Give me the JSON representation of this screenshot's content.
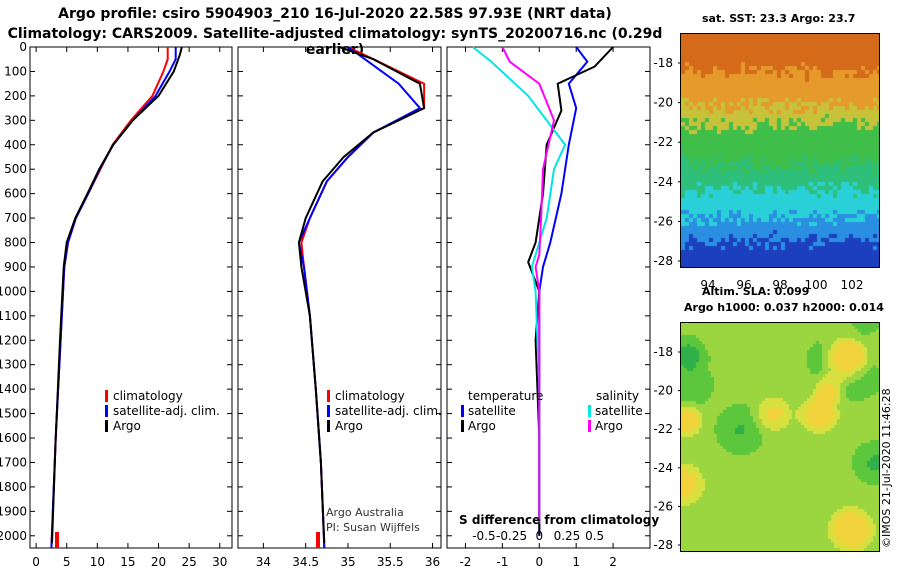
{
  "header": {
    "line1": "Argo profile: csiro 5904903_210 16-Jul-2020 22.58S 97.93E (NRT data)",
    "line2": "Climatology: CARS2009. Satellite-adjusted climatology: synTS_20200716.nc (0.29d earlier)"
  },
  "colors": {
    "climatology": "#ff0000",
    "satellite": "#0000ff",
    "argo": "#000000",
    "sat_salinity": "#00e5e5",
    "argo_salinity": "#ff00ff"
  },
  "chart_data": [
    {
      "type": "line",
      "panel": "temperature",
      "ylim": [
        2050,
        0
      ],
      "yticks": [
        0,
        100,
        200,
        300,
        400,
        500,
        600,
        700,
        800,
        900,
        1000,
        1100,
        1200,
        1300,
        1400,
        1500,
        1600,
        1700,
        1800,
        1900,
        2000
      ],
      "xlim": [
        -1,
        32
      ],
      "xticks": [
        0,
        5,
        10,
        15,
        20,
        25,
        30
      ],
      "legend": [
        "climatology",
        "satellite-adj. clim.",
        "Argo"
      ],
      "series": [
        {
          "name": "climatology",
          "color": "#ff0000",
          "x": [
            21.5,
            21.5,
            20.8,
            19.0,
            15.5,
            12.5,
            10.5,
            8.5,
            6.5,
            5.2,
            4.6,
            4.0,
            3.2,
            2.5
          ],
          "y": [
            0,
            50,
            100,
            200,
            300,
            400,
            500,
            600,
            700,
            800,
            900,
            1200,
            1600,
            2050
          ]
        },
        {
          "name": "satellite-adj. clim.",
          "color": "#0000ff",
          "x": [
            22.8,
            22.8,
            21.8,
            19.5,
            15.8,
            12.6,
            10.4,
            8.5,
            6.5,
            5.2,
            4.6,
            4.0,
            3.2,
            2.5
          ],
          "y": [
            0,
            50,
            100,
            200,
            300,
            400,
            500,
            600,
            700,
            800,
            900,
            1200,
            1600,
            2050
          ]
        },
        {
          "name": "Argo",
          "color": "#000000",
          "x": [
            23.8,
            23.5,
            22.5,
            20.0,
            15.8,
            12.6,
            10.3,
            8.4,
            6.4,
            5.0,
            4.5,
            3.9,
            3.2,
            2.6
          ],
          "y": [
            0,
            30,
            100,
            200,
            300,
            400,
            500,
            600,
            700,
            800,
            900,
            1200,
            1600,
            2030
          ]
        }
      ]
    },
    {
      "type": "line",
      "panel": "salinity",
      "xlim": [
        33.7,
        36.1
      ],
      "xticks": [
        34,
        34.5,
        35,
        35.5,
        36
      ],
      "legend": [
        "climatology",
        "satellite-adj. clim.",
        "Argo"
      ],
      "series": [
        {
          "name": "climatology",
          "color": "#ff0000",
          "x": [
            35.0,
            35.3,
            35.9,
            35.9,
            35.3,
            35.0,
            34.75,
            34.55,
            34.45,
            34.48,
            34.55,
            34.62,
            34.68,
            34.72
          ],
          "y": [
            0,
            50,
            150,
            250,
            350,
            450,
            550,
            700,
            800,
            900,
            1100,
            1400,
            1700,
            2050
          ]
        },
        {
          "name": "satellite-adj. clim.",
          "color": "#0000ff",
          "x": [
            35.0,
            35.2,
            35.6,
            35.85,
            35.3,
            35.0,
            34.75,
            34.55,
            34.42,
            34.48,
            34.55,
            34.62,
            34.68,
            34.72
          ],
          "y": [
            0,
            50,
            150,
            250,
            350,
            450,
            550,
            700,
            800,
            900,
            1100,
            1400,
            1700,
            2050
          ]
        },
        {
          "name": "Argo",
          "color": "#000000",
          "x": [
            34.9,
            35.3,
            35.85,
            35.9,
            35.3,
            34.95,
            34.7,
            34.5,
            34.42,
            34.45,
            34.55,
            34.62,
            34.68,
            34.72
          ],
          "y": [
            0,
            50,
            150,
            250,
            350,
            450,
            550,
            700,
            800,
            900,
            1100,
            1400,
            1700,
            2030
          ]
        }
      ],
      "annotations": [
        "Argo Australia",
        "PI: Susan Wijffels"
      ]
    },
    {
      "type": "line",
      "panel": "difference",
      "xlim": [
        -2.5,
        3.0
      ],
      "xticks": [
        -2,
        -1,
        0,
        1,
        2
      ],
      "xticklabels_inner": [
        "-0.5",
        "-0.25",
        "0",
        "0.25",
        "0.5"
      ],
      "xlabel": "S difference from climatology",
      "legend_temperature": [
        "satellite",
        "Argo"
      ],
      "legend_salinity": [
        "satellite",
        "Argo"
      ],
      "legend_headers": [
        "temperature",
        "salinity"
      ],
      "series": [
        {
          "name": "temperature satellite",
          "color": "#0000ff",
          "x": [
            1.0,
            1.3,
            0.8,
            1.0,
            0.8,
            0.6,
            0.3,
            0.1,
            0.0,
            0.0,
            0.0,
            0.0
          ],
          "y": [
            0,
            60,
            150,
            250,
            400,
            600,
            800,
            900,
            1000,
            1200,
            1600,
            2000
          ]
        },
        {
          "name": "temperature Argo",
          "color": "#000000",
          "x": [
            2.0,
            1.5,
            0.5,
            0.6,
            0.2,
            0.1,
            -0.1,
            -0.3,
            0.0,
            -0.1,
            0.0,
            0.0
          ],
          "y": [
            0,
            80,
            150,
            260,
            400,
            600,
            800,
            880,
            1000,
            1200,
            1600,
            2000
          ]
        },
        {
          "name": "salinity satellite",
          "color": "#00e5e5",
          "x": [
            -1.8,
            -1.3,
            -0.3,
            0.7,
            0.4,
            0.2,
            0.0,
            -0.2,
            -0.1,
            0.0,
            0.0
          ],
          "y": [
            0,
            60,
            200,
            400,
            500,
            700,
            800,
            900,
            1000,
            1400,
            1950
          ]
        },
        {
          "name": "salinity Argo",
          "color": "#ff00ff",
          "x": [
            -1.0,
            -0.8,
            0.0,
            0.4,
            0.1,
            0.05,
            0.0,
            -0.1,
            0.0,
            0.0,
            0.0
          ],
          "y": [
            0,
            60,
            150,
            300,
            500,
            700,
            850,
            900,
            1000,
            1400,
            1950
          ]
        }
      ]
    }
  ],
  "maps": {
    "sst_title": "sat. SST: 23.3 Argo: 23.7",
    "sla_title1": "Altim. SLA: 0.099",
    "sla_title2": "Argo h1000: 0.037 h2000: 0.014",
    "lat_ticks": [
      "-18",
      "-20",
      "-22",
      "-24",
      "-26",
      "-28"
    ],
    "lon_ticks": [
      "94",
      "96",
      "98",
      "100",
      "102"
    ]
  },
  "stamp": "©IMOS 21-Jul-2020 11:46:28"
}
